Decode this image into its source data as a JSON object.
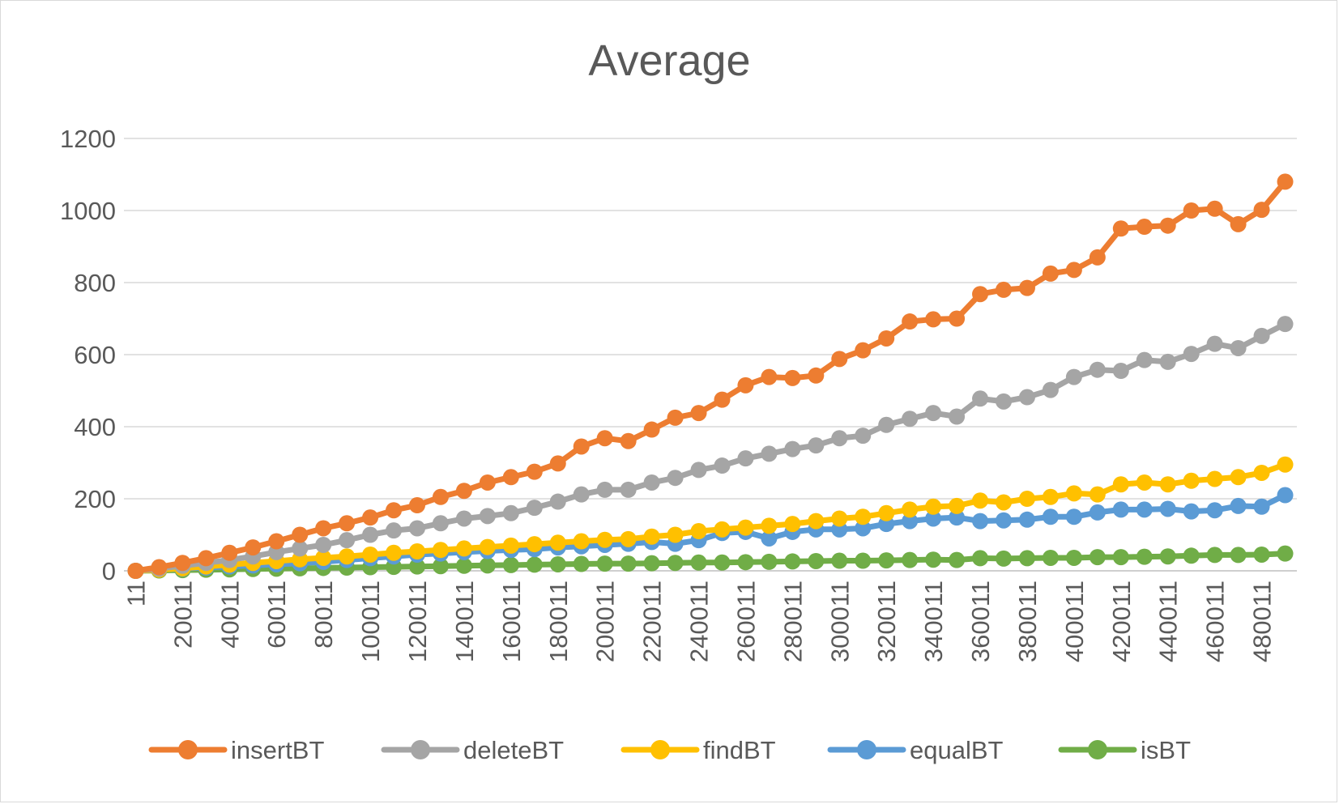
{
  "chart_data": {
    "type": "line",
    "title": "Average",
    "xlabel": "",
    "ylabel": "",
    "ylim": [
      0,
      1200
    ],
    "yticks": [
      0,
      200,
      400,
      600,
      800,
      1000,
      1200
    ],
    "x": [
      11,
      10011,
      20011,
      30011,
      40011,
      50011,
      60011,
      70011,
      80011,
      90011,
      100011,
      110011,
      120011,
      130011,
      140011,
      150011,
      160011,
      170011,
      180011,
      190011,
      200011,
      210011,
      220011,
      230011,
      240011,
      250011,
      260011,
      270011,
      280011,
      290011,
      300011,
      310011,
      320011,
      330011,
      340011,
      350011,
      360011,
      370011,
      380011,
      390011,
      400011,
      410011,
      420011,
      430011,
      440011,
      450011,
      460011,
      470011,
      480011,
      490011
    ],
    "x_tick_labels": [
      "11",
      "20011",
      "40011",
      "60011",
      "80011",
      "100011",
      "120011",
      "140011",
      "160011",
      "180011",
      "200011",
      "220011",
      "240011",
      "260011",
      "280011",
      "300011",
      "320011",
      "340011",
      "360011",
      "380011",
      "400011",
      "420011",
      "440011",
      "460011",
      "480011"
    ],
    "grid": true,
    "legend_position": "bottom",
    "series": [
      {
        "name": "insertBT",
        "color": "#ED7D31",
        "values": [
          0,
          10,
          22,
          35,
          50,
          65,
          82,
          100,
          118,
          132,
          148,
          168,
          182,
          205,
          222,
          245,
          260,
          275,
          298,
          345,
          368,
          360,
          392,
          425,
          438,
          475,
          515,
          538,
          535,
          542,
          588,
          612,
          645,
          692,
          698,
          700,
          768,
          780,
          785,
          825,
          835,
          870,
          950,
          955,
          958,
          1000,
          1005,
          962,
          1002,
          1080
        ]
      },
      {
        "name": "deleteBT",
        "color": "#A5A5A5",
        "values": [
          0,
          6,
          14,
          22,
          30,
          40,
          52,
          62,
          72,
          85,
          100,
          112,
          118,
          132,
          145,
          152,
          160,
          175,
          192,
          212,
          225,
          225,
          245,
          258,
          280,
          292,
          312,
          325,
          338,
          348,
          368,
          375,
          405,
          422,
          438,
          428,
          478,
          470,
          482,
          502,
          538,
          558,
          555,
          585,
          580,
          602,
          630,
          618,
          652,
          685
        ]
      },
      {
        "name": "findBT",
        "color": "#FFC000",
        "values": [
          0,
          3,
          7,
          12,
          17,
          22,
          27,
          32,
          36,
          40,
          45,
          50,
          54,
          58,
          62,
          66,
          70,
          74,
          78,
          82,
          86,
          88,
          95,
          100,
          110,
          115,
          120,
          125,
          130,
          138,
          145,
          150,
          160,
          170,
          178,
          180,
          195,
          190,
          200,
          205,
          215,
          212,
          240,
          245,
          240,
          250,
          255,
          260,
          272,
          295
        ]
      },
      {
        "name": "equalBT",
        "color": "#5B9BD5",
        "values": [
          0,
          3,
          6,
          9,
          12,
          15,
          18,
          21,
          25,
          30,
          35,
          40,
          45,
          48,
          52,
          55,
          58,
          60,
          65,
          68,
          72,
          75,
          80,
          75,
          85,
          105,
          108,
          90,
          108,
          115,
          115,
          118,
          130,
          138,
          145,
          148,
          138,
          140,
          142,
          150,
          150,
          162,
          170,
          170,
          172,
          165,
          168,
          180,
          178,
          210
        ]
      },
      {
        "name": "isBT",
        "color": "#70AD47",
        "values": [
          0,
          1,
          2,
          3,
          4,
          5,
          6,
          7,
          8,
          9,
          10,
          11,
          12,
          13,
          14,
          15,
          16,
          17,
          18,
          19,
          20,
          20,
          21,
          22,
          23,
          23,
          24,
          25,
          26,
          27,
          28,
          28,
          29,
          30,
          31,
          30,
          35,
          34,
          35,
          36,
          36,
          38,
          38,
          39,
          40,
          42,
          44,
          44,
          45,
          48
        ]
      }
    ]
  }
}
